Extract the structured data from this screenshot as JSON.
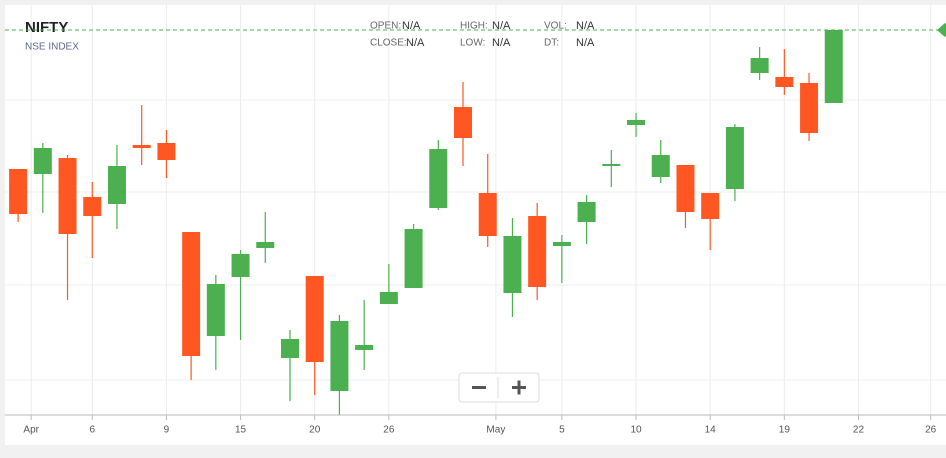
{
  "chart_data": {
    "type": "candlestick",
    "title": "NIFTY",
    "subtitle": "NSE INDEX",
    "info": [
      {
        "label": "OPEN:",
        "value": "N/A"
      },
      {
        "label": "HIGH:",
        "value": "N/A"
      },
      {
        "label": "VOL:",
        "value": "N/A"
      },
      {
        "label": "CLOSE:",
        "value": "N/A"
      },
      {
        "label": "LOW:",
        "value": "N/A"
      },
      {
        "label": "DT:",
        "value": "N/A"
      }
    ],
    "x": [
      0,
      1,
      2,
      3,
      4,
      5,
      6,
      7,
      8,
      9,
      10,
      11,
      12,
      13,
      14,
      15,
      16,
      17,
      18,
      19,
      20,
      21,
      22,
      23,
      24,
      25,
      26,
      27,
      28,
      29,
      30,
      31,
      32,
      33
    ],
    "open": [
      251,
      246,
      262,
      223,
      216,
      275,
      277,
      188,
      84,
      143,
      172,
      62,
      144,
      29,
      70,
      116,
      132,
      212,
      313,
      227,
      127,
      204,
      174,
      198,
      254,
      295,
      243,
      255,
      227,
      231,
      347,
      343,
      337,
      317
    ],
    "high": [
      251,
      277,
      265,
      238,
      275,
      315,
      290,
      188,
      145,
      170,
      208,
      90,
      144,
      105,
      120,
      156,
      196,
      280,
      338,
      266,
      202,
      217,
      185,
      225,
      270,
      307,
      280,
      255,
      227,
      296,
      373,
      371,
      347,
      390
    ],
    "low": [
      198,
      207,
      120,
      162,
      191,
      255,
      242,
      40,
      50,
      80,
      157,
      19,
      25,
      5,
      50,
      116,
      132,
      210,
      254,
      173,
      103,
      120,
      137,
      176,
      233,
      283,
      237,
      192,
      170,
      219,
      340,
      325,
      279,
      317
    ],
    "close": [
      206,
      272,
      186,
      204,
      254,
      272,
      260,
      64,
      136,
      166,
      178,
      81,
      58,
      99,
      75,
      128,
      191,
      271,
      282,
      184,
      184,
      133,
      178,
      218,
      256,
      300,
      265,
      208,
      201,
      293,
      362,
      333,
      287,
      390
    ],
    "up_color": "#4caf50",
    "down_color": "#ff5722",
    "xlim": [
      -0.53,
      37.5
    ],
    "ylim": [
      0,
      415
    ],
    "xticks": [
      {
        "value": 0.53,
        "label": "Apr"
      },
      3,
      6,
      9,
      12,
      15,
      {
        "value": 19.33,
        "label": "May"
      },
      {
        "value": 22,
        "label": "5"
      },
      {
        "value": 25,
        "label": "10"
      },
      {
        "value": 28,
        "label": "14"
      },
      {
        "value": 31,
        "label": "19"
      },
      {
        "value": 34,
        "label": "22"
      },
      {
        "value": 36.92,
        "label": "26"
      }
    ],
    "xtick_labels": [
      "Apr",
      "6",
      "9",
      "15",
      "20",
      "26",
      "May",
      "5",
      "10",
      "14",
      "19",
      "22",
      "26"
    ],
    "grid": true
  }
}
